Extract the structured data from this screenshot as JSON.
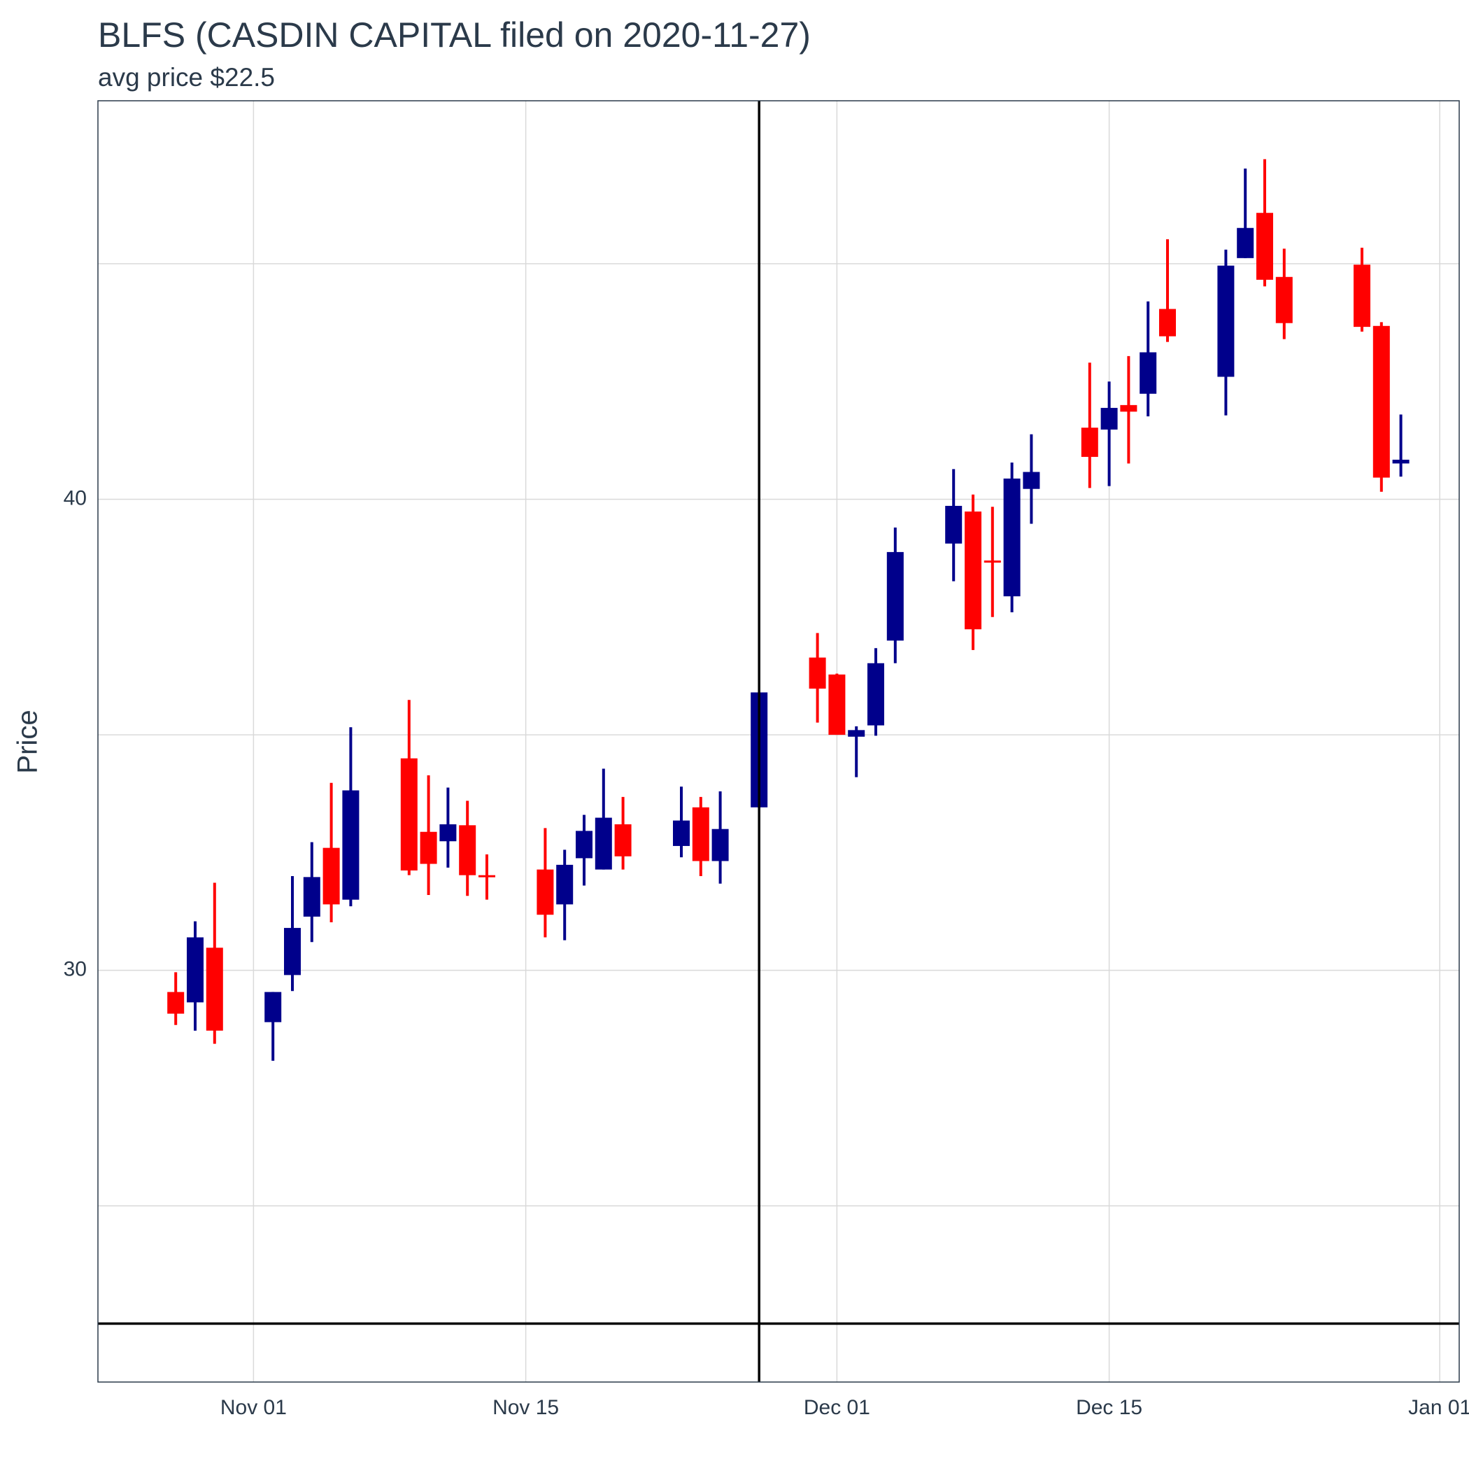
{
  "chart_data": {
    "type": "candlestick",
    "title": "BLFS (CASDIN CAPITAL filed on 2020-11-27)",
    "subtitle": "avg price $22.5",
    "y_label": "Price",
    "up_color": "#00008b",
    "down_color": "#ff0000",
    "grid": true,
    "x": [
      "Oct 28",
      "Oct 29",
      "Oct 30",
      "Nov 02",
      "Nov 03",
      "Nov 04",
      "Nov 05",
      "Nov 06",
      "Nov 09",
      "Nov 10",
      "Nov 11",
      "Nov 12",
      "Nov 13",
      "Nov 16",
      "Nov 17",
      "Nov 18",
      "Nov 19",
      "Nov 20",
      "Nov 23",
      "Nov 24",
      "Nov 25",
      "Nov 27",
      "Nov 30",
      "Dec 01",
      "Dec 02",
      "Dec 03",
      "Dec 04",
      "Dec 07",
      "Dec 08",
      "Dec 09",
      "Dec 10",
      "Dec 11",
      "Dec 14",
      "Dec 15",
      "Dec 16",
      "Dec 17",
      "Dec 18",
      "Dec 21",
      "Dec 22",
      "Dec 23",
      "Dec 24",
      "Dec 28",
      "Dec 29",
      "Dec 30"
    ],
    "open": [
      29.54,
      29.32,
      30.48,
      28.9,
      29.9,
      31.14,
      32.6,
      31.5,
      34.5,
      32.94,
      32.74,
      33.08,
      32.02,
      32.14,
      31.4,
      32.38,
      32.14,
      33.1,
      32.64,
      33.46,
      32.32,
      33.46,
      36.64,
      36.28,
      34.96,
      35.2,
      37.0,
      39.06,
      39.74,
      38.7,
      37.94,
      40.22,
      41.52,
      41.48,
      42.0,
      42.24,
      44.04,
      42.6,
      45.12,
      46.08,
      44.72,
      44.98,
      43.68,
      40.76
    ],
    "high": [
      29.96,
      31.04,
      31.86,
      29.54,
      32.0,
      32.72,
      33.98,
      35.16,
      35.74,
      34.14,
      33.88,
      33.6,
      32.46,
      33.02,
      32.56,
      33.3,
      34.28,
      33.68,
      33.9,
      33.68,
      33.8,
      35.9,
      37.16,
      36.3,
      35.18,
      36.84,
      39.4,
      40.64,
      40.1,
      39.84,
      40.78,
      41.38,
      42.9,
      42.5,
      43.04,
      44.2,
      45.52,
      45.3,
      47.02,
      47.22,
      45.32,
      45.34,
      43.76,
      41.8
    ],
    "low": [
      28.84,
      28.72,
      28.44,
      28.08,
      29.56,
      30.6,
      31.02,
      31.36,
      32.02,
      31.6,
      32.18,
      31.58,
      31.5,
      30.7,
      30.64,
      31.8,
      32.14,
      32.14,
      32.4,
      32.0,
      31.84,
      33.46,
      35.26,
      35.0,
      34.1,
      34.98,
      36.52,
      38.26,
      36.8,
      37.5,
      37.6,
      39.48,
      40.24,
      40.28,
      40.76,
      41.76,
      43.34,
      41.78,
      45.12,
      44.52,
      43.4,
      43.56,
      40.16,
      40.48
    ],
    "close": [
      29.08,
      30.7,
      28.72,
      29.54,
      30.9,
      31.98,
      31.4,
      33.82,
      32.12,
      32.26,
      33.1,
      32.02,
      31.98,
      31.18,
      32.24,
      32.96,
      33.24,
      32.42,
      33.18,
      32.32,
      33.0,
      35.9,
      35.98,
      35.0,
      35.1,
      36.52,
      38.88,
      39.86,
      37.24,
      38.66,
      40.44,
      40.58,
      40.9,
      41.94,
      41.86,
      43.12,
      43.46,
      44.96,
      45.76,
      44.66,
      43.74,
      43.66,
      40.46,
      40.84
    ],
    "xlim": [
      "Oct 24",
      "Jan 02"
    ],
    "xticks": [
      "Nov 01",
      "Nov 15",
      "Dec 01",
      "Dec 15",
      "Jan 01"
    ],
    "ylim": [
      21.26,
      48.46
    ],
    "yticks": [
      30,
      40
    ],
    "yminor_ticks": [
      25,
      35,
      45
    ],
    "hline": 22.5,
    "vline": "Nov 27"
  }
}
